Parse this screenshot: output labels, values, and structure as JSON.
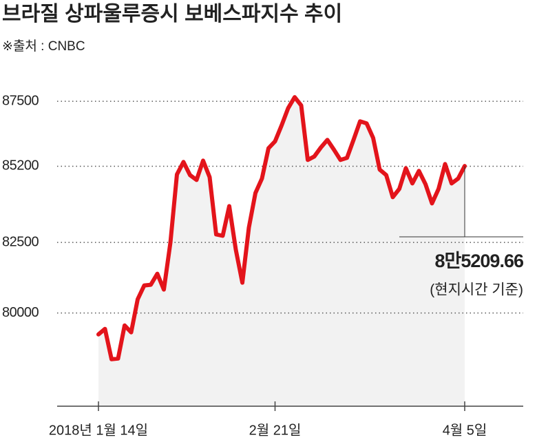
{
  "chart_data": {
    "type": "line",
    "title": "브라질 상파울루증시 보베스파지수 추이",
    "subtitle": "※출처 : CNBC",
    "categories": [
      "2018년 1월 14일",
      null,
      null,
      null,
      null,
      null,
      null,
      null,
      null,
      null,
      null,
      null,
      null,
      null,
      null,
      null,
      null,
      null,
      null,
      null,
      null,
      null,
      null,
      null,
      null,
      null,
      null,
      "2월 21일",
      null,
      null,
      null,
      null,
      null,
      null,
      null,
      null,
      null,
      null,
      null,
      null,
      null,
      null,
      null,
      null,
      null,
      null,
      null,
      null,
      null,
      null,
      null,
      null,
      null,
      null,
      null,
      null,
      "4월 5일"
    ],
    "values": [
      79243,
      79438,
      78363,
      78388,
      79560,
      79316,
      80489,
      80977,
      81002,
      81393,
      80831,
      82492,
      84910,
      85350,
      84886,
      84715,
      85399,
      84813,
      82785,
      82736,
      83787,
      82248,
      81075,
      83029,
      84251,
      84764,
      85839,
      86083,
      86645,
      87256,
      87647,
      87354,
      85423,
      85546,
      85863,
      86132,
      85790,
      85423,
      85497,
      86132,
      86792,
      86718,
      86205,
      85081,
      84886,
      84104,
      84397,
      85130,
      84593,
      85033,
      84568,
      83884,
      84397,
      85277,
      84593,
      84764,
      85209.66
    ],
    "color": "#e3141b",
    "area_color": "#f2f2f2",
    "ylim": [
      76700,
      88650
    ],
    "yticks": [
      87500,
      85200,
      82500,
      80000
    ],
    "grid": true,
    "annotation": {
      "label": "8만5209.66",
      "note": "(현지시간 기준)"
    }
  }
}
